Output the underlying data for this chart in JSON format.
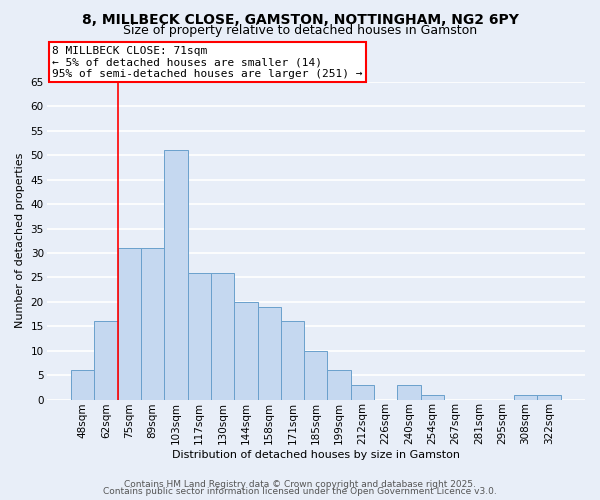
{
  "title1": "8, MILLBECK CLOSE, GAMSTON, NOTTINGHAM, NG2 6PY",
  "title2": "Size of property relative to detached houses in Gamston",
  "xlabel": "Distribution of detached houses by size in Gamston",
  "ylabel": "Number of detached properties",
  "categories": [
    "48sqm",
    "62sqm",
    "75sqm",
    "89sqm",
    "103sqm",
    "117sqm",
    "130sqm",
    "144sqm",
    "158sqm",
    "171sqm",
    "185sqm",
    "199sqm",
    "212sqm",
    "226sqm",
    "240sqm",
    "254sqm",
    "267sqm",
    "281sqm",
    "295sqm",
    "308sqm",
    "322sqm"
  ],
  "values": [
    6,
    16,
    31,
    31,
    51,
    26,
    26,
    20,
    19,
    16,
    10,
    6,
    3,
    0,
    3,
    1,
    0,
    0,
    0,
    1,
    1
  ],
  "bar_color": "#c5d8f0",
  "bar_edge_color": "#6aa0cc",
  "vline_color": "red",
  "annotation_text": "8 MILLBECK CLOSE: 71sqm\n← 5% of detached houses are smaller (14)\n95% of semi-detached houses are larger (251) →",
  "annotation_box_facecolor": "white",
  "annotation_box_edgecolor": "red",
  "ylim": [
    0,
    65
  ],
  "yticks": [
    0,
    5,
    10,
    15,
    20,
    25,
    30,
    35,
    40,
    45,
    50,
    55,
    60,
    65
  ],
  "background_color": "#e8eef8",
  "grid_color": "white",
  "footer1": "Contains HM Land Registry data © Crown copyright and database right 2025.",
  "footer2": "Contains public sector information licensed under the Open Government Licence v3.0.",
  "title_fontsize": 10,
  "subtitle_fontsize": 9,
  "axis_label_fontsize": 8,
  "tick_fontsize": 7.5,
  "annotation_fontsize": 8,
  "footer_fontsize": 6.5
}
